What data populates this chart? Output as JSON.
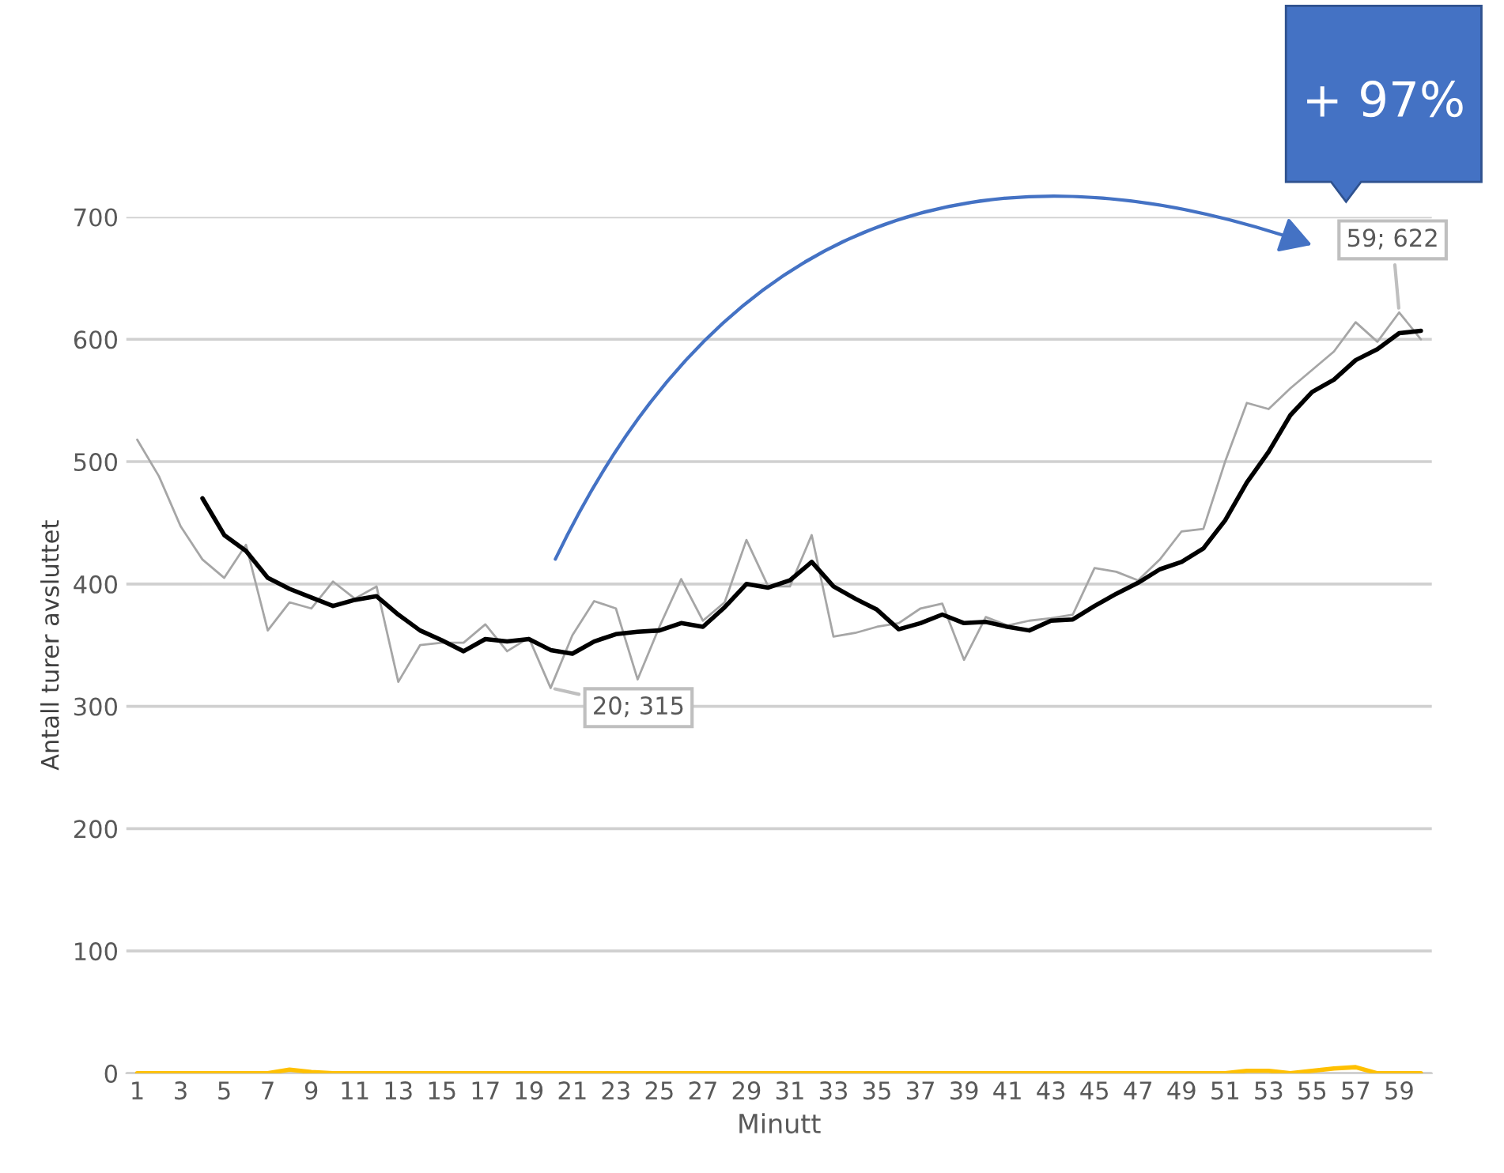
{
  "chart_data": {
    "type": "line",
    "xlabel": "Minutt",
    "ylabel": "Antall turer avsluttet",
    "categories": [
      "1",
      null,
      "3",
      null,
      "5",
      null,
      "7",
      null,
      "9",
      null,
      "11",
      null,
      "13",
      null,
      "15",
      null,
      "17",
      null,
      "19",
      null,
      "21",
      null,
      "23",
      null,
      "25",
      null,
      "27",
      null,
      "29",
      null,
      "31",
      null,
      "33",
      null,
      "35",
      null,
      "37",
      null,
      "39",
      null,
      "41",
      null,
      "43",
      null,
      "45",
      null,
      "47",
      null,
      "49",
      null,
      "51",
      null,
      "53",
      null,
      "55",
      null,
      "57",
      null,
      "59",
      null
    ],
    "series": [
      {
        "color": "#a6a6a6",
        "values": [
          518,
          488,
          447,
          420,
          405,
          432,
          362,
          385,
          380,
          402,
          388,
          398,
          320,
          350,
          352,
          352,
          367,
          345,
          356,
          315,
          358,
          386,
          380,
          322,
          365,
          404,
          370,
          385,
          436,
          398,
          398,
          440,
          357,
          360,
          365,
          368,
          380,
          384,
          338,
          373,
          366,
          370,
          372,
          375,
          413,
          410,
          403,
          420,
          443,
          445,
          500,
          548,
          543,
          560,
          575,
          590,
          614,
          598,
          622,
          600
        ]
      },
      {
        "color": "#000000",
        "values": [
          null,
          null,
          null,
          470,
          440,
          427,
          405,
          396,
          389,
          382,
          387,
          390,
          375,
          362,
          354,
          345,
          355,
          353,
          355,
          346,
          343,
          353,
          359,
          361,
          362,
          368,
          365,
          381,
          400,
          397,
          403,
          418,
          398,
          388,
          379,
          363,
          368,
          375,
          368,
          369,
          365,
          362,
          370,
          371,
          382,
          392,
          401,
          412,
          418,
          429,
          452,
          483,
          508,
          538,
          557,
          567,
          583,
          592,
          605,
          607
        ]
      },
      {
        "color": "#ffc000",
        "values": [
          0,
          0,
          0,
          0,
          0,
          0,
          0,
          3,
          1,
          0,
          0,
          0,
          0,
          0,
          0,
          0,
          0,
          0,
          0,
          0,
          0,
          0,
          0,
          0,
          0,
          0,
          0,
          0,
          0,
          0,
          0,
          0,
          0,
          0,
          0,
          0,
          0,
          0,
          0,
          0,
          0,
          0,
          0,
          0,
          0,
          0,
          0,
          0,
          0,
          0,
          0,
          2,
          2,
          0,
          2,
          4,
          5,
          0,
          0,
          0
        ]
      }
    ],
    "ylim": [
      0,
      700
    ],
    "yticks": [
      0,
      100,
      200,
      300,
      400,
      500,
      600,
      700
    ],
    "grid": "y",
    "legend": false,
    "annotations": [
      {
        "text": "20; 315",
        "y": 315
      },
      {
        "text": "59; 622",
        "x": "59",
        "y": 622
      },
      "+ 97%"
    ]
  }
}
